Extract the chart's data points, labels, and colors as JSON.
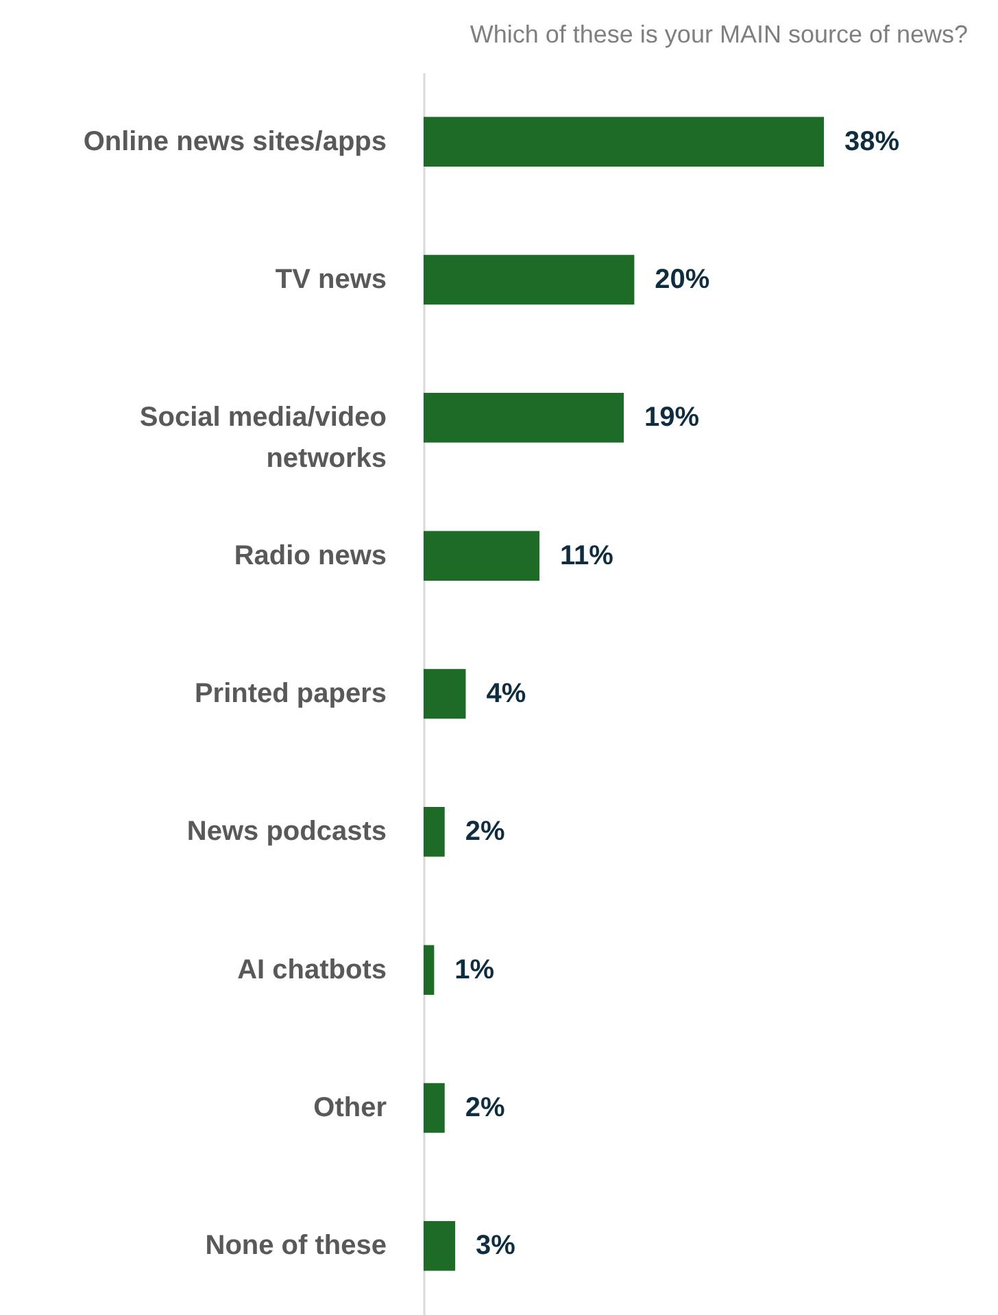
{
  "chart_data": {
    "type": "bar",
    "orientation": "horizontal",
    "title": "Which of these is your MAIN source of news?",
    "categories": [
      "Online news sites/apps",
      "TV news",
      "Social media/video networks",
      "Radio news",
      "Printed papers",
      "News podcasts",
      "AI chatbots",
      "Other",
      "None of these"
    ],
    "values": [
      38,
      20,
      19,
      11,
      4,
      2,
      1,
      2,
      3
    ],
    "value_labels": [
      "38%",
      "20%",
      "19%",
      "11%",
      "4%",
      "2%",
      "1%",
      "2%",
      "3%"
    ],
    "color": "#1e6b28",
    "tick_labels": "y"
  }
}
